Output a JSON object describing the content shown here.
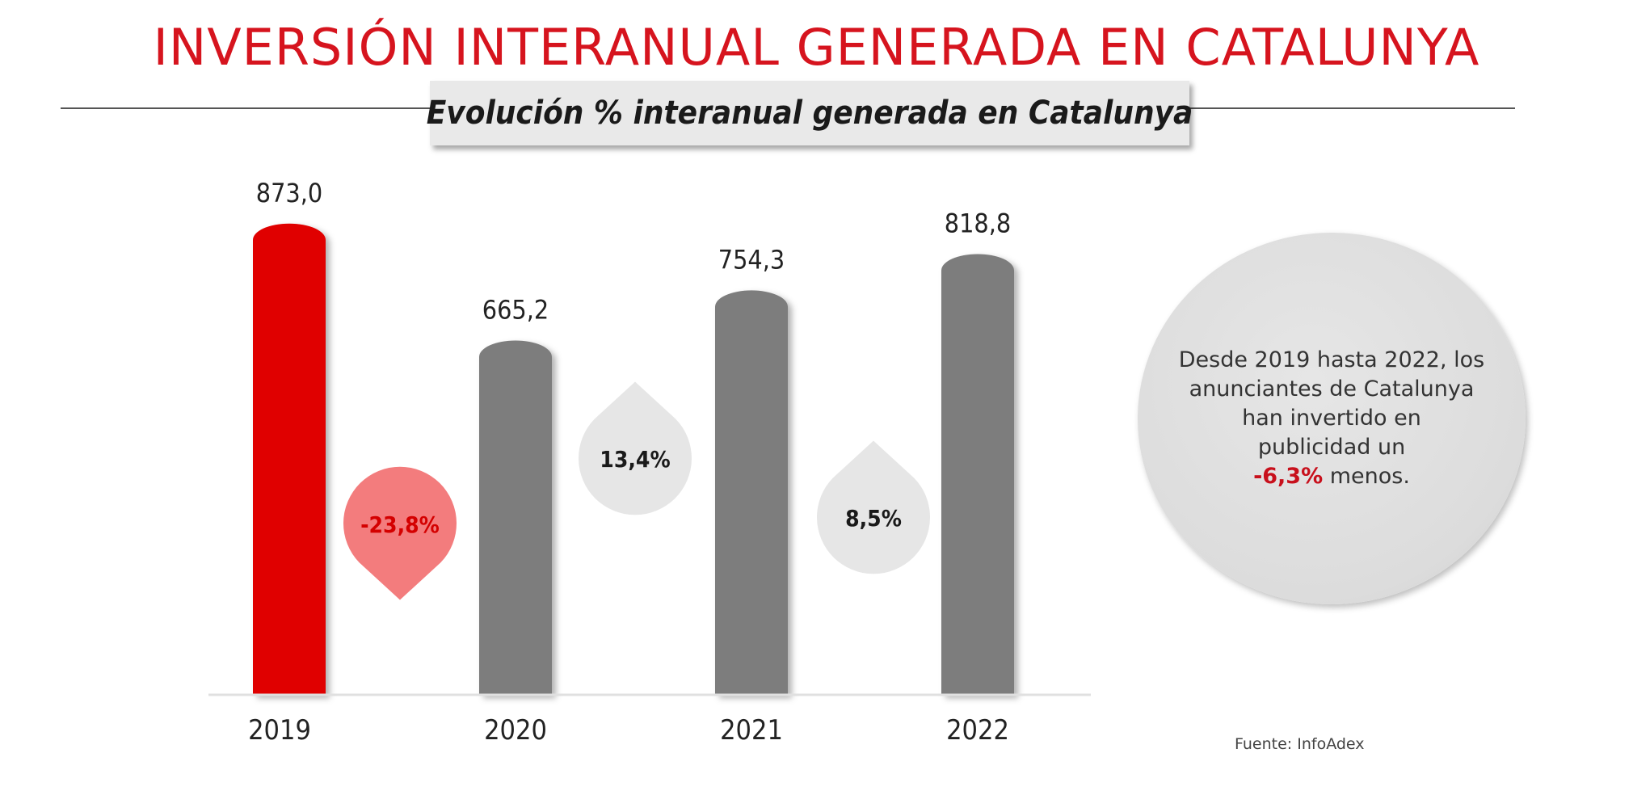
{
  "header": {
    "title": "INVERSIÓN INTERANUAL GENERADA EN CATALUNYA",
    "subtitle": "Evolución % interanual generada en Catalunya"
  },
  "chart_data": {
    "type": "bar",
    "categories": [
      "2019",
      "2020",
      "2021",
      "2022"
    ],
    "values": [
      873.0,
      665.2,
      754.3,
      818.8
    ],
    "value_labels": [
      "873,0",
      "665,2",
      "754,3",
      "818,8"
    ],
    "changes": [
      {
        "label": "-23,8%",
        "value": -23.8
      },
      {
        "label": "13,4%",
        "value": 13.4
      },
      {
        "label": "8,5%",
        "value": 8.5
      }
    ],
    "colors": {
      "highlight": "#e00000",
      "bar": "#7d7d7d",
      "negative_drop": "#f37c7d",
      "negative_text": "#d40000",
      "positive_drop": "#e6e6e6",
      "positive_text": "#1a1a1a"
    },
    "title": "",
    "xlabel": "",
    "ylabel": "",
    "ylim": [
      0,
      900
    ],
    "grid": false
  },
  "info": {
    "line1": "Desde 2019 hasta 2022, los",
    "line2": "anunciantes de Catalunya",
    "line3": "han invertido en",
    "line4": "publicidad un",
    "highlight": "-6,3%",
    "line5_rest": " menos."
  },
  "source": "Fuente: InfoAdex"
}
